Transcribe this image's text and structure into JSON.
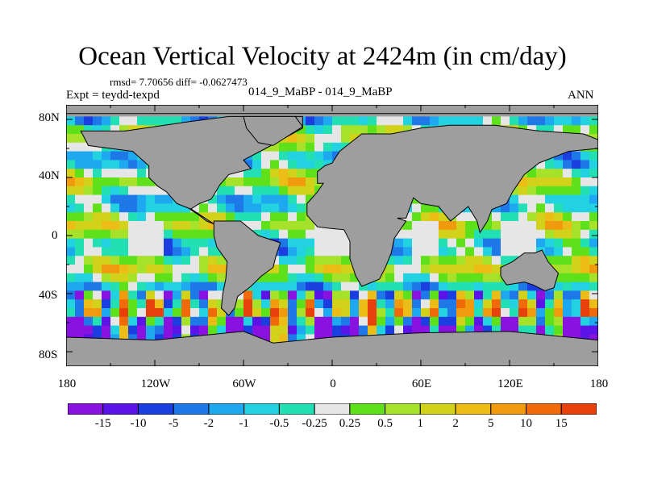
{
  "header": {
    "title": "Ocean Vertical Velocity at 2424m (in cm/day)",
    "stats": "rmsd= 7.70656 diff= -0.0627473",
    "experiment": "Expt = teydd-texpd",
    "case": "014_9_MaBP - 014_9_MaBP",
    "season": "ANN"
  },
  "map": {
    "projection": "cylindrical-equidistant",
    "land_color": "#9e9e9e",
    "lat_range": [
      -90,
      90
    ],
    "lon_range": [
      -180,
      180
    ],
    "lat_labels": [
      "80N",
      "40N",
      "0",
      "40S",
      "80S"
    ],
    "lon_labels": [
      "180",
      "120W",
      "60W",
      "0",
      "60E",
      "120E",
      "180"
    ]
  },
  "colorbar": {
    "colors": [
      "#8a12e0",
      "#5a14e8",
      "#1a3ee0",
      "#1e78e8",
      "#1ea8f0",
      "#22d2e0",
      "#22e0b4",
      "#e6e6e6",
      "#5ee01a",
      "#a6e22a",
      "#d2d21a",
      "#ecbd16",
      "#f09a0e",
      "#f06a0a",
      "#e8400a"
    ],
    "labels": [
      "-15",
      "-10",
      "-5",
      "-2",
      "-1",
      "-0.5",
      "-0.25",
      "0.25",
      "0.5",
      "1",
      "2",
      "5",
      "10",
      "15"
    ]
  }
}
